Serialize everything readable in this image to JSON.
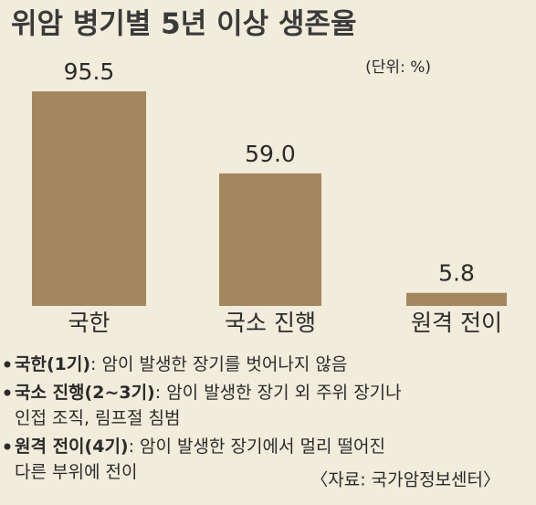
{
  "chart_data": {
    "type": "bar",
    "title": "위암 병기별 5년 이상 생존율",
    "unit": "(단위: %)",
    "categories": [
      "국한",
      "국소 진행",
      "원격 전이"
    ],
    "values": [
      95.5,
      59.0,
      5.8
    ],
    "value_labels": [
      "95.5",
      "59.0",
      "5.8"
    ],
    "color": "#a3875f",
    "notes": [
      {
        "term": "국한(1기)",
        "lines": [
          ": 암이 발생한 장기를 벗어나지 않음"
        ]
      },
      {
        "term": "국소 진행(2~3기)",
        "lines": [
          ": 암이 발생한 장기 외 주위 장기나",
          "인접 조직, 림프절 침범"
        ]
      },
      {
        "term": "원격 전이(4기)",
        "lines": [
          ": 암이 발생한 장기에서 멀리 떨어진",
          "다른 부위에 전이"
        ]
      }
    ],
    "source": "〈자료: 국가암정보센터〉"
  }
}
